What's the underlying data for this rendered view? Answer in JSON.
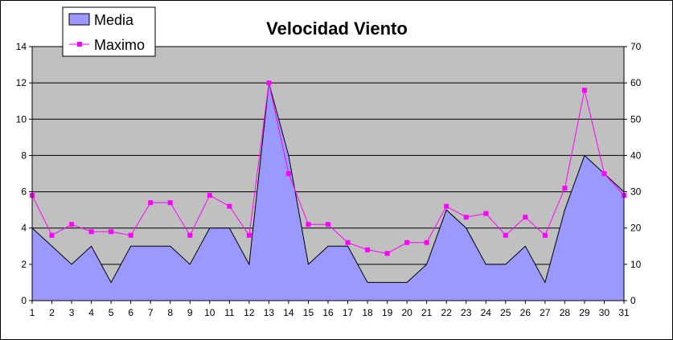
{
  "chart_data": {
    "type": "area",
    "title": "Velocidad Viento",
    "xlabel": "",
    "ylabel": "",
    "x": [
      1,
      2,
      3,
      4,
      5,
      6,
      7,
      8,
      9,
      10,
      11,
      12,
      13,
      14,
      15,
      16,
      17,
      18,
      19,
      20,
      21,
      22,
      23,
      24,
      25,
      26,
      27,
      28,
      29,
      30,
      31
    ],
    "ylim": [
      0,
      14
    ],
    "y2lim": [
      0,
      70
    ],
    "yticks": [
      0,
      2,
      4,
      6,
      8,
      10,
      12,
      14
    ],
    "y2ticks": [
      0,
      10,
      20,
      30,
      40,
      50,
      60,
      70
    ],
    "grid": true,
    "legend": "top-left",
    "series": [
      {
        "name": "Media",
        "type": "area",
        "axis": "left",
        "color": "#9999ff",
        "values": [
          4,
          3,
          2,
          3,
          1,
          3,
          3,
          3,
          2,
          4,
          4,
          2,
          12,
          8,
          2,
          3,
          3,
          1,
          1,
          1,
          2,
          5,
          4,
          2,
          2,
          3,
          1,
          5,
          8,
          7,
          6
        ]
      },
      {
        "name": "Maximo",
        "type": "line",
        "axis": "right",
        "color": "#ff00ff",
        "values": [
          29,
          18,
          21,
          19,
          19,
          18,
          27,
          27,
          18,
          29,
          26,
          18,
          60,
          35,
          21,
          21,
          16,
          14,
          13,
          16,
          16,
          26,
          23,
          24,
          18,
          23,
          18,
          31,
          58,
          35,
          29
        ]
      }
    ],
    "colors": {
      "plot_background": "#c0c0c0",
      "gridline": "#000000"
    }
  }
}
